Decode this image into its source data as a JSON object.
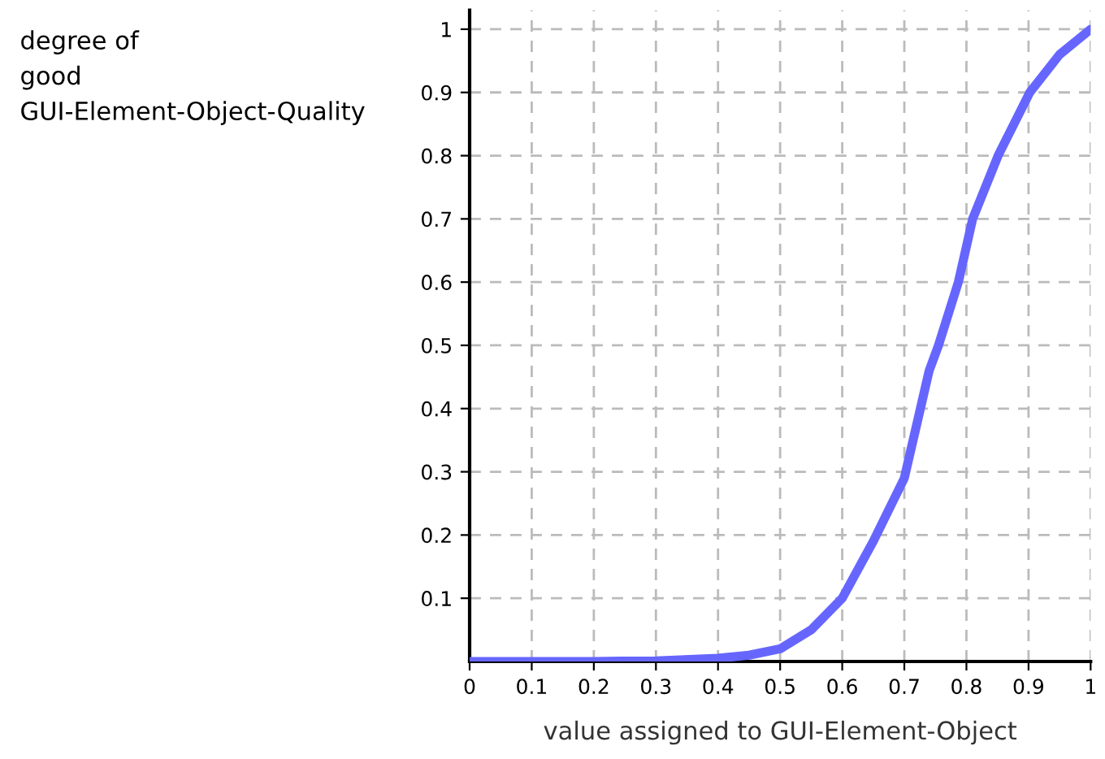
{
  "chart_data": {
    "type": "line",
    "xlabel": "value assigned to GUI-Element-Object",
    "ylabel": "degree of\ngood\nGUI-Element-Object-Quality",
    "x": [
      0,
      0.1,
      0.2,
      0.3,
      0.4,
      0.45,
      0.5,
      0.55,
      0.6,
      0.65,
      0.7,
      0.74,
      0.755,
      0.787,
      0.81,
      0.851,
      0.902,
      0.95,
      1
    ],
    "series": [
      {
        "color": "#6666ff",
        "values": [
          0,
          0,
          0,
          0.001,
          0.005,
          0.01,
          0.02,
          0.05,
          0.1,
          0.19,
          0.29,
          0.46,
          0.5,
          0.6,
          0.7,
          0.8,
          0.9,
          0.96,
          1
        ]
      }
    ],
    "xlim": [
      0,
      1
    ],
    "ylim": [
      0,
      1.03
    ],
    "xticks": [
      0,
      0.1,
      0.2,
      0.3,
      0.4,
      0.5,
      0.6,
      0.7,
      0.8,
      0.9,
      1
    ],
    "yticks": [
      0.1,
      0.2,
      0.3,
      0.4,
      0.5,
      0.6,
      0.7,
      0.8,
      0.9,
      1
    ],
    "grid": true,
    "legend": false,
    "marker": "none",
    "line_style": "solid"
  }
}
